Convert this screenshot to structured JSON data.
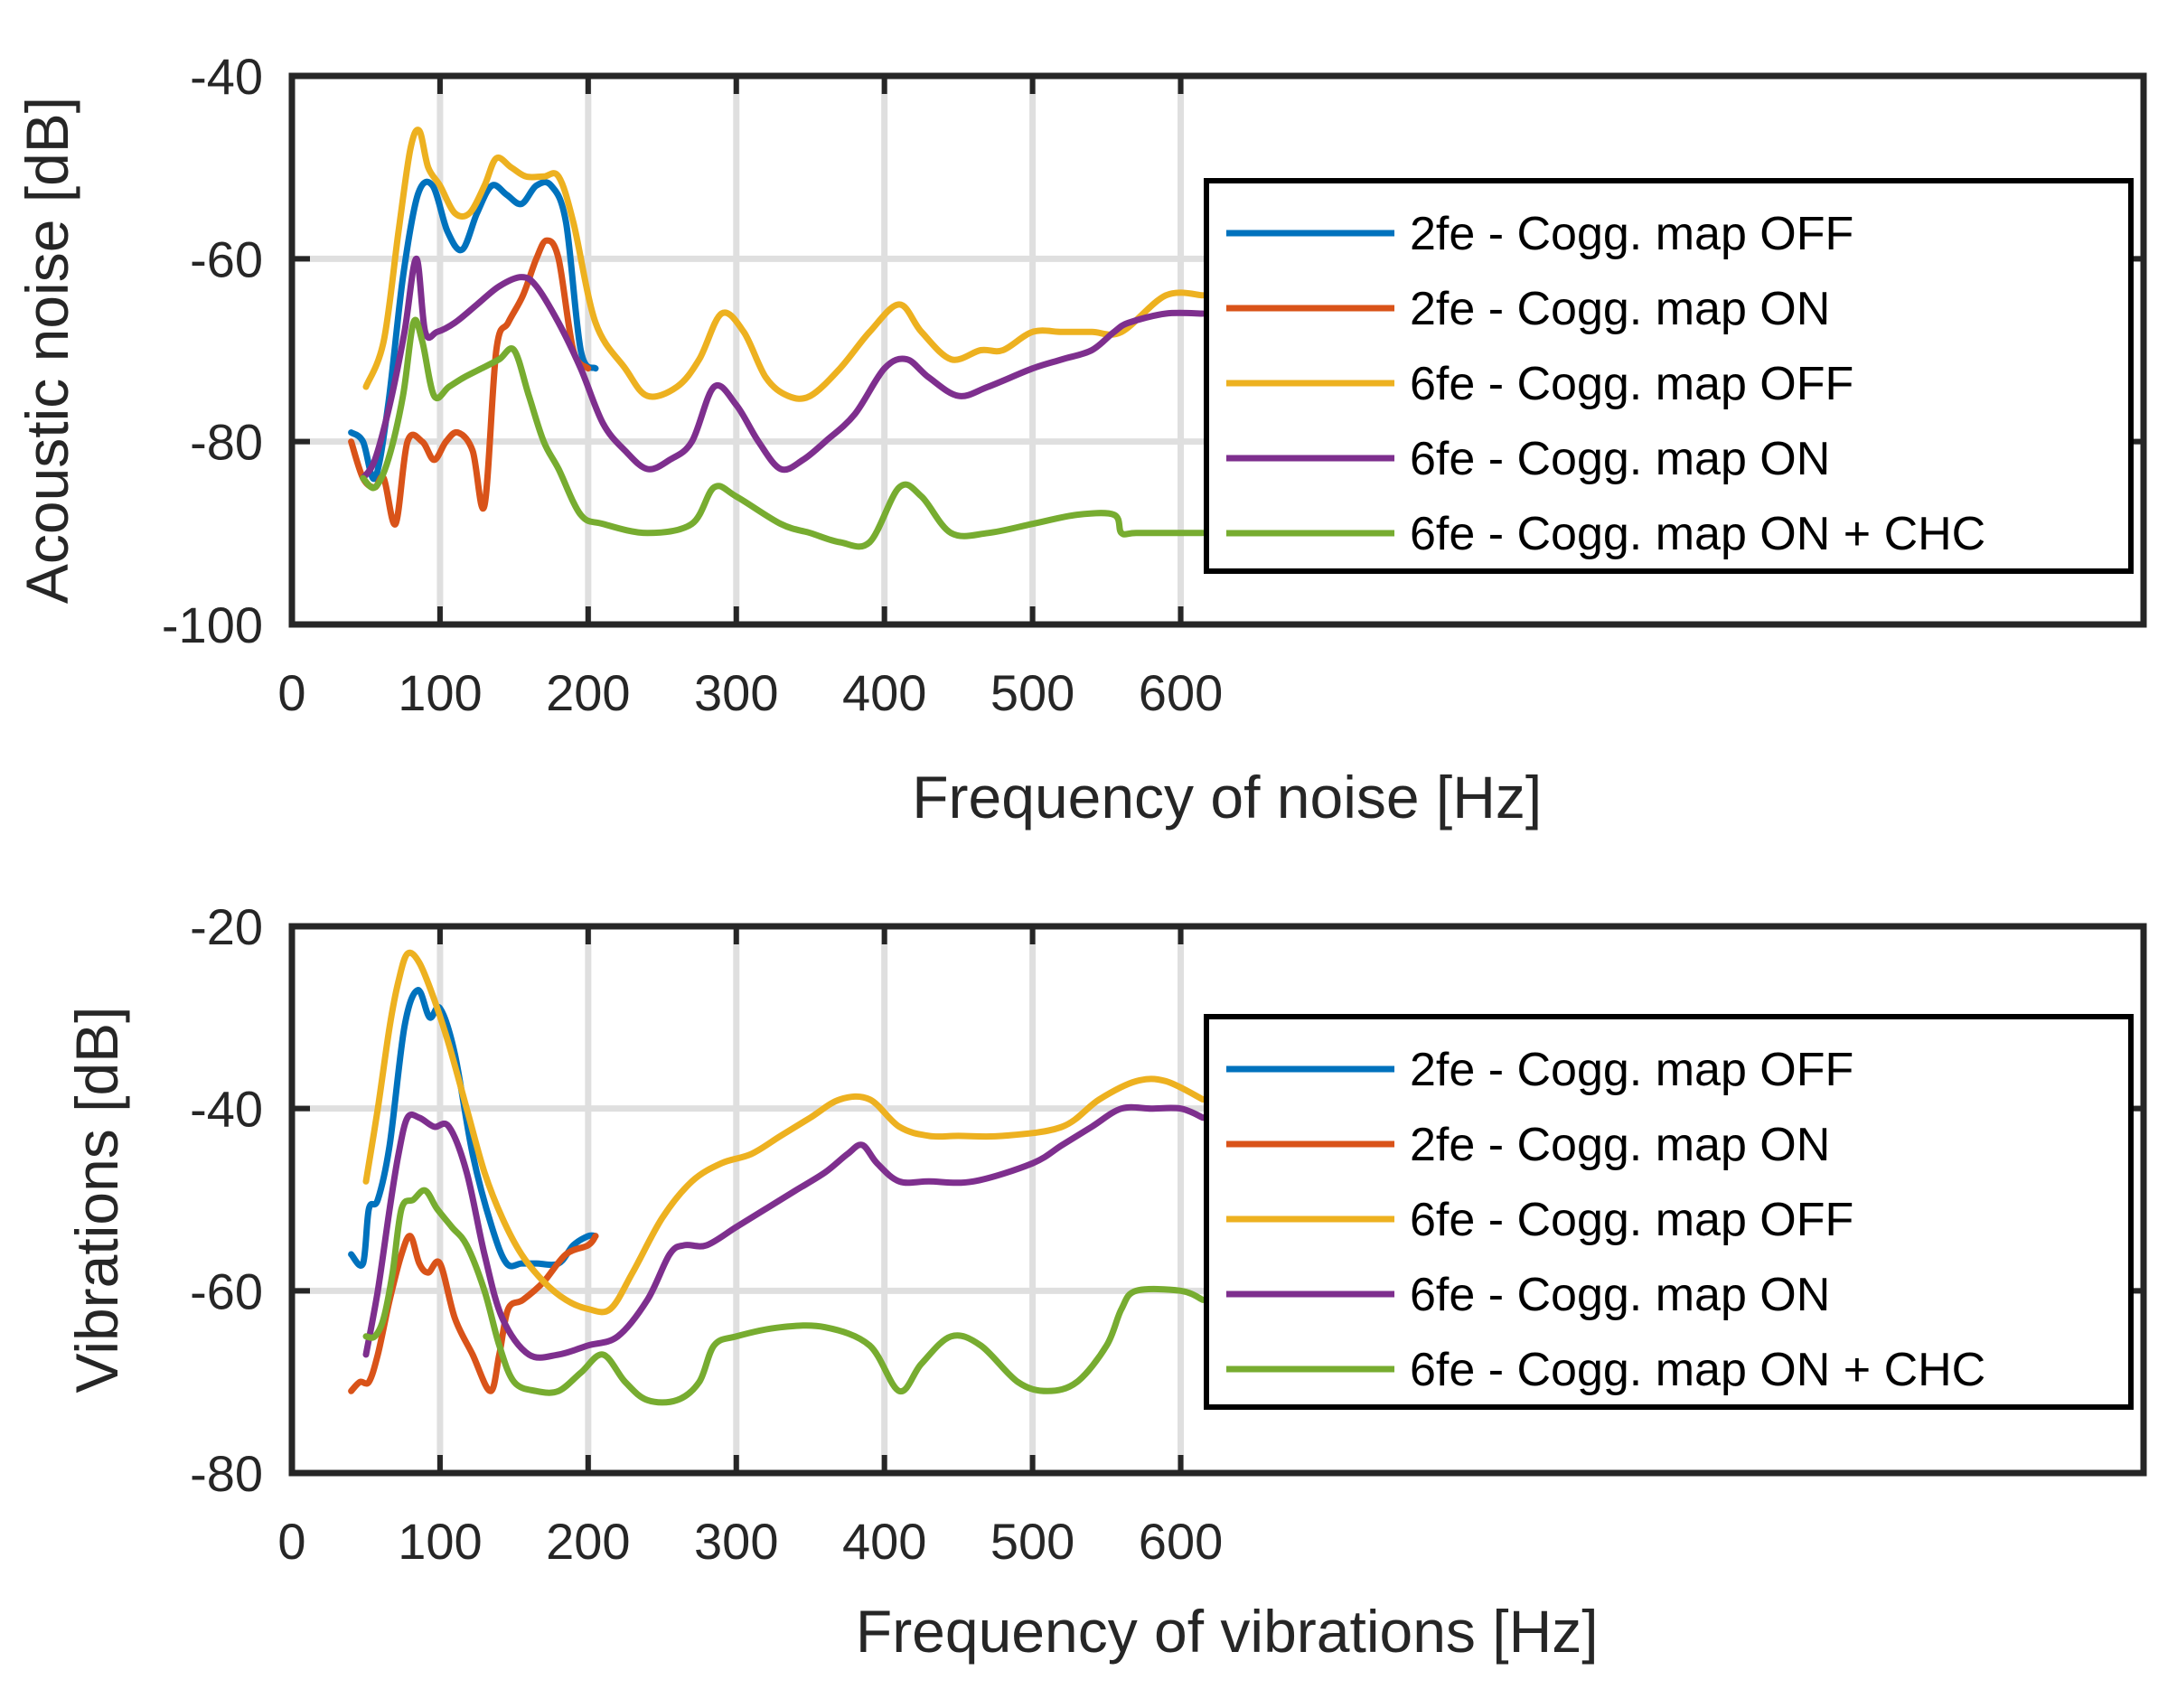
{
  "chart_data": [
    {
      "type": "line",
      "title": "",
      "xlabel": "Frequency of noise [Hz]",
      "ylabel": "Acoustic noise [dB]",
      "xlim": [
        0,
        1250
      ],
      "ylim": [
        -100,
        -40
      ],
      "xticks": [
        0,
        100,
        200,
        300,
        400,
        500,
        600
      ],
      "xtick_labels": [
        "0",
        "100",
        "200",
        "300",
        "400",
        "500",
        "600"
      ],
      "yticks": [
        -100,
        -80,
        -60,
        -40
      ],
      "ytick_labels": [
        "-100",
        "-80",
        "-60",
        "-40"
      ],
      "grid": true,
      "legend_position": "right",
      "series": [
        {
          "name": "2fe - Cogg. map OFF",
          "color": "#0072BD",
          "x": [
            40,
            48,
            56,
            65,
            75,
            85,
            95,
            105,
            115,
            125,
            135,
            145,
            155,
            165,
            175,
            185,
            195,
            205
          ],
          "y": [
            -79,
            -80,
            -84,
            -76,
            -62,
            -53,
            -52,
            -57,
            -59,
            -55,
            -52,
            -53,
            -54,
            -52,
            -52,
            -56,
            -70,
            -72
          ]
        },
        {
          "name": "2fe - Cogg. map ON",
          "color": "#D95319",
          "x": [
            40,
            48,
            56,
            62,
            70,
            78,
            88,
            96,
            104,
            112,
            122,
            130,
            138,
            146,
            156,
            165,
            172,
            180,
            190,
            200
          ],
          "y": [
            -80,
            -84,
            -85,
            -84,
            -89,
            -80,
            -80,
            -82,
            -80,
            -79,
            -81,
            -87,
            -70,
            -67,
            -64,
            -60,
            -58,
            -60,
            -70,
            -72
          ]
        },
        {
          "name": "6fe - Cogg. map OFF",
          "color": "#EDB120",
          "x": [
            50,
            62,
            72,
            80,
            86,
            92,
            100,
            110,
            120,
            130,
            138,
            148,
            158,
            170,
            180,
            190,
            205,
            225,
            240,
            260,
            275,
            290,
            305,
            320,
            335,
            350,
            370,
            390,
            410,
            425,
            445,
            465,
            480,
            500,
            520,
            540,
            560,
            590,
            615
          ],
          "y": [
            -74,
            -69,
            -57,
            -48,
            -46,
            -50,
            -52,
            -55,
            -55,
            -52,
            -49,
            -50,
            -51,
            -51,
            -51,
            -56,
            -67,
            -72,
            -75,
            -74,
            -71,
            -66,
            -68,
            -73,
            -75,
            -75,
            -72,
            -68,
            -65,
            -68,
            -71,
            -70,
            -70,
            -68,
            -68,
            -68,
            -68,
            -64,
            -64
          ]
        },
        {
          "name": "6fe - Cogg. map ON",
          "color": "#7E2F8E",
          "x": [
            48,
            56,
            66,
            76,
            84,
            90,
            98,
            110,
            125,
            140,
            155,
            165,
            180,
            195,
            210,
            225,
            240,
            255,
            270,
            285,
            300,
            315,
            330,
            345,
            360,
            380,
            400,
            415,
            430,
            450,
            470,
            500,
            520,
            540,
            555,
            565,
            590,
            615
          ],
          "y": [
            -84,
            -82,
            -76,
            -68,
            -60,
            -68,
            -68,
            -67,
            -65,
            -63,
            -62,
            -63,
            -67,
            -72,
            -78,
            -81,
            -83,
            -82,
            -80,
            -74,
            -76,
            -80,
            -83,
            -82,
            -80,
            -77,
            -72,
            -71,
            -73,
            -75,
            -74,
            -72,
            -71,
            -70,
            -68,
            -67,
            -66,
            -66
          ]
        },
        {
          "name": "6fe - Cogg. map ON + CHC",
          "color": "#77AC30",
          "x": [
            48,
            56,
            65,
            75,
            82,
            88,
            96,
            106,
            116,
            128,
            140,
            150,
            160,
            170,
            180,
            195,
            210,
            240,
            270,
            285,
            300,
            330,
            350,
            370,
            390,
            410,
            425,
            445,
            470,
            500,
            530,
            555,
            560,
            570,
            600,
            615
          ],
          "y": [
            -84,
            -85,
            -82,
            -75,
            -67,
            -69,
            -75,
            -74,
            -73,
            -72,
            -71,
            -70,
            -75,
            -80,
            -83,
            -88,
            -89,
            -90,
            -89,
            -85,
            -86,
            -89,
            -90,
            -91,
            -91,
            -85,
            -86,
            -90,
            -90,
            -89,
            -88,
            -88,
            -90,
            -90,
            -90,
            -90
          ]
        }
      ]
    },
    {
      "type": "line",
      "title": "",
      "xlabel": "Frequency of vibrations [Hz]",
      "ylabel": "Vibrations [dB]",
      "xlim": [
        0,
        1250
      ],
      "ylim": [
        -80,
        -20
      ],
      "xticks": [
        0,
        100,
        200,
        300,
        400,
        500,
        600
      ],
      "xtick_labels": [
        "0",
        "100",
        "200",
        "300",
        "400",
        "500",
        "600"
      ],
      "yticks": [
        -80,
        -60,
        -40,
        -20
      ],
      "ytick_labels": [
        "-80",
        "-60",
        "-40",
        "-20"
      ],
      "grid": true,
      "legend_position": "right",
      "series": [
        {
          "name": "2fe - Cogg. map OFF",
          "color": "#0072BD",
          "x": [
            40,
            48,
            52,
            58,
            66,
            76,
            85,
            93,
            100,
            110,
            122,
            135,
            145,
            155,
            165,
            180,
            190,
            200,
            205
          ],
          "y": [
            -56,
            -57,
            -51,
            -50,
            -44,
            -31,
            -27,
            -30,
            -29,
            -34,
            -45,
            -53,
            -57,
            -57,
            -57,
            -57,
            -55,
            -54,
            -54
          ]
        },
        {
          "name": "2fe - Cogg. map ON",
          "color": "#D95319",
          "x": [
            40,
            46,
            52,
            58,
            66,
            74,
            80,
            86,
            92,
            100,
            110,
            122,
            134,
            140,
            146,
            156,
            170,
            185,
            200,
            205
          ],
          "y": [
            -71,
            -70,
            -70,
            -67,
            -61,
            -56,
            -54,
            -57,
            -58,
            -57,
            -63,
            -67,
            -71,
            -67,
            -62,
            -61,
            -59,
            -56,
            -55,
            -54
          ]
        },
        {
          "name": "6fe - Cogg. map OFF",
          "color": "#EDB120",
          "x": [
            50,
            58,
            66,
            72,
            78,
            86,
            96,
            106,
            118,
            130,
            142,
            155,
            170,
            185,
            200,
            215,
            230,
            250,
            270,
            290,
            310,
            330,
            350,
            370,
            390,
            410,
            430,
            450,
            480,
            520,
            545,
            570,
            590,
            615
          ],
          "y": [
            -48,
            -40,
            -31,
            -26,
            -23,
            -24,
            -28,
            -33,
            -40,
            -47,
            -52,
            -56,
            -59,
            -61,
            -62,
            -62,
            -58,
            -52,
            -48,
            -46,
            -45,
            -43,
            -41,
            -39,
            -39,
            -42,
            -43,
            -43,
            -43,
            -42,
            -39,
            -37,
            -37,
            -39
          ]
        },
        {
          "name": "6fe - Cogg. map ON",
          "color": "#7E2F8E",
          "x": [
            50,
            58,
            66,
            72,
            78,
            86,
            96,
            106,
            118,
            130,
            142,
            160,
            180,
            200,
            220,
            240,
            255,
            265,
            280,
            300,
            320,
            340,
            360,
            375,
            385,
            395,
            410,
            430,
            460,
            500,
            520,
            540,
            560,
            580,
            600,
            615
          ],
          "y": [
            -67,
            -60,
            -51,
            -45,
            -41,
            -41,
            -42,
            -42,
            -47,
            -56,
            -63,
            -67,
            -67,
            -66,
            -65,
            -61,
            -56,
            -55,
            -55,
            -53,
            -51,
            -49,
            -47,
            -45,
            -44,
            -46,
            -48,
            -48,
            -48,
            -46,
            -44,
            -42,
            -40,
            -40,
            -40,
            -41
          ]
        },
        {
          "name": "6fe - Cogg. map ON + CHC",
          "color": "#77AC30",
          "x": [
            50,
            56,
            62,
            68,
            74,
            82,
            90,
            98,
            108,
            118,
            130,
            140,
            150,
            165,
            180,
            195,
            210,
            225,
            240,
            260,
            275,
            285,
            300,
            330,
            360,
            390,
            410,
            425,
            445,
            465,
            490,
            510,
            530,
            550,
            560,
            570,
            600,
            615
          ],
          "y": [
            -65,
            -65,
            -63,
            -58,
            -51,
            -50,
            -49,
            -51,
            -53,
            -55,
            -60,
            -66,
            -70,
            -71,
            -71,
            -69,
            -67,
            -70,
            -72,
            -72,
            -70,
            -66,
            -65,
            -64,
            -64,
            -66,
            -71,
            -68,
            -65,
            -66,
            -70,
            -71,
            -70,
            -66,
            -62,
            -60,
            -60,
            -61
          ]
        }
      ]
    }
  ]
}
